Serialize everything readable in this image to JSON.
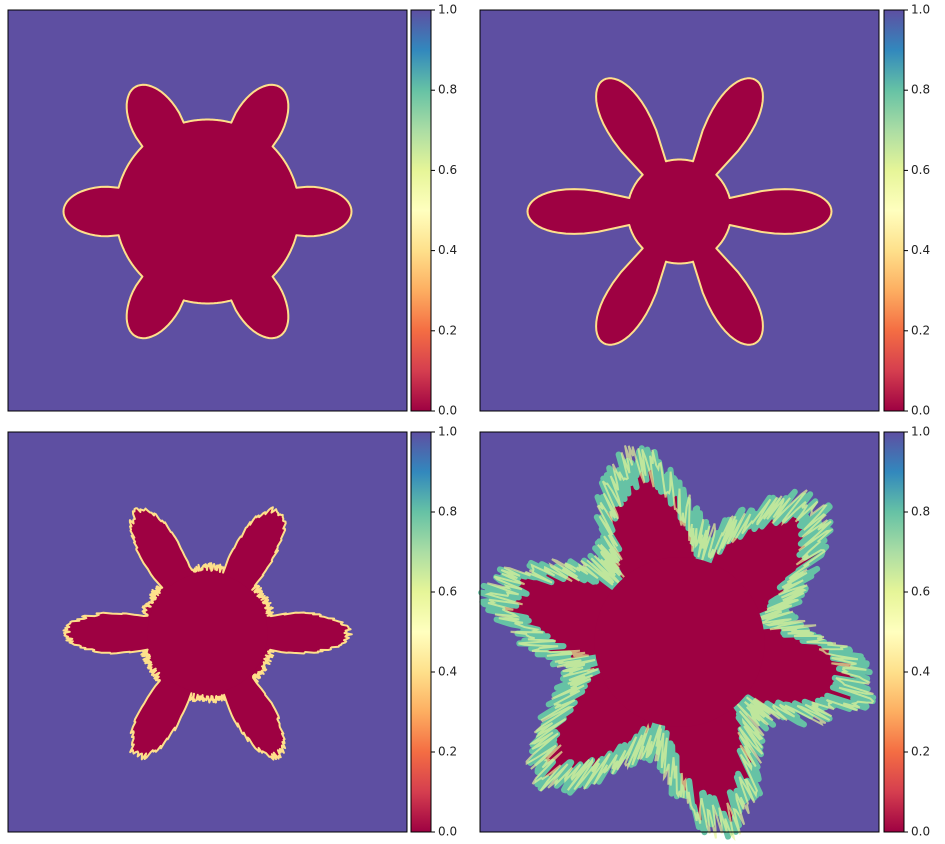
{
  "chart_data": [
    {
      "type": "heatmap",
      "colormap": "Spectral",
      "clim": [
        0,
        1
      ],
      "cticks": [
        {
          "value": 0,
          "label": "0.0"
        },
        {
          "value": 0.2,
          "label": "0.2"
        },
        {
          "value": 0.4,
          "label": "0.4"
        },
        {
          "value": 0.6,
          "label": "0.6"
        },
        {
          "value": 0.8,
          "label": "0.8"
        },
        {
          "value": 1,
          "label": "1.0"
        }
      ]
    },
    {
      "type": "heatmap",
      "colormap": "Spectral",
      "clim": [
        0,
        1
      ],
      "cticks": [
        {
          "value": 0,
          "label": "0.0"
        },
        {
          "value": 0.2,
          "label": "0.2"
        },
        {
          "value": 0.4,
          "label": "0.4"
        },
        {
          "value": 0.6,
          "label": "0.6"
        },
        {
          "value": 0.8,
          "label": "0.8"
        },
        {
          "value": 1,
          "label": "1.0"
        }
      ]
    },
    {
      "type": "heatmap",
      "colormap": "Spectral",
      "clim": [
        0,
        1
      ],
      "cticks": [
        {
          "value": 0,
          "label": "0.0"
        },
        {
          "value": 0.2,
          "label": "0.2"
        },
        {
          "value": 0.4,
          "label": "0.4"
        },
        {
          "value": 0.6,
          "label": "0.6"
        },
        {
          "value": 0.8,
          "label": "0.8"
        },
        {
          "value": 1,
          "label": "1.0"
        }
      ]
    },
    {
      "type": "heatmap",
      "colormap": "Spectral",
      "clim": [
        0,
        1
      ],
      "cticks": [
        {
          "value": 0,
          "label": "0.0"
        },
        {
          "value": 0.2,
          "label": "0.2"
        },
        {
          "value": 0.4,
          "label": "0.4"
        },
        {
          "value": 0.6,
          "label": "0.6"
        },
        {
          "value": 0.8,
          "label": "0.8"
        },
        {
          "value": 1,
          "label": "1.0"
        }
      ]
    }
  ]
}
